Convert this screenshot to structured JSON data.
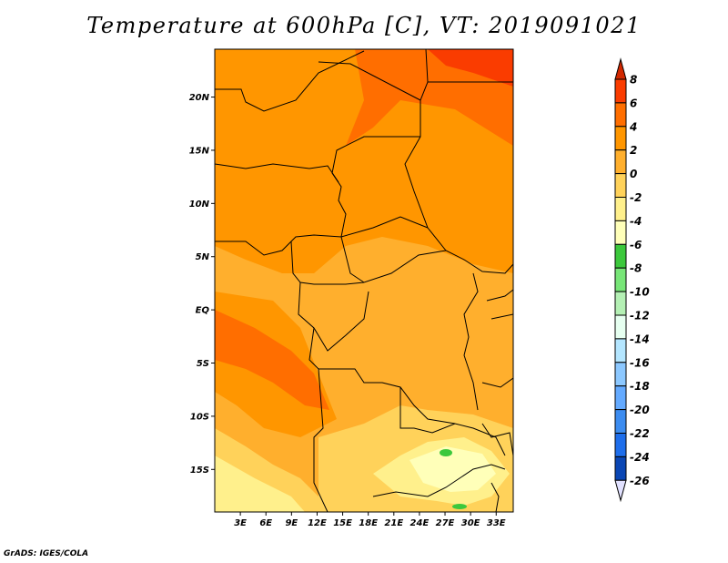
{
  "title": "Temperature at 600hPa [C], VT: 2019091021",
  "credit": "GrADS: IGES/COLA",
  "map": {
    "lon_range": [
      0,
      35
    ],
    "lat_range": [
      -19,
      24.5
    ],
    "lat_ticks": [
      {
        "lat": 20,
        "label": "20N"
      },
      {
        "lat": 15,
        "label": "15N"
      },
      {
        "lat": 10,
        "label": "10N"
      },
      {
        "lat": 5,
        "label": "5N"
      },
      {
        "lat": 0,
        "label": "EQ"
      },
      {
        "lat": -5,
        "label": "5S"
      },
      {
        "lat": -10,
        "label": "10S"
      },
      {
        "lat": -15,
        "label": "15S"
      }
    ],
    "lon_ticks": [
      {
        "lon": 3,
        "label": "3E"
      },
      {
        "lon": 6,
        "label": "6E"
      },
      {
        "lon": 9,
        "label": "9E"
      },
      {
        "lon": 12,
        "label": "12E"
      },
      {
        "lon": 15,
        "label": "15E"
      },
      {
        "lon": 18,
        "label": "18E"
      },
      {
        "lon": 21,
        "label": "21E"
      },
      {
        "lon": 24,
        "label": "24E"
      },
      {
        "lon": 27,
        "label": "27E"
      },
      {
        "lon": 30,
        "label": "30E"
      },
      {
        "lon": 33,
        "label": "33E"
      }
    ]
  },
  "colorbar": {
    "levels": [
      "8",
      "6",
      "4",
      "2",
      "0",
      "-2",
      "-4",
      "-6",
      "-8",
      "-10",
      "-12",
      "-14",
      "-16",
      "-18",
      "-20",
      "-22",
      "-24",
      "-26"
    ],
    "colors": [
      "#fa3c00",
      "#ff6e00",
      "#ff9600",
      "#ffaf2d",
      "#ffd25a",
      "#fff08c",
      "#ffffb9",
      "#3cc83c",
      "#78e678",
      "#b4f0b4",
      "#e6fff0",
      "#b4e6ff",
      "#8cc8ff",
      "#64aaff",
      "#3c8cf0",
      "#1e6eeb",
      "#0a46b4",
      "#0a1e78",
      "#0a0a50"
    ],
    "top_color": "#d22800",
    "bottom_color": "#e1e1ff"
  },
  "regions": [
    {
      "name": "base",
      "color": "#ffaf2d"
    },
    {
      "name": "north-warm",
      "color": "#ff9600"
    },
    {
      "name": "northeast-hot",
      "color": "#ff6e00"
    },
    {
      "name": "northeast-corner",
      "color": "#fa3c00"
    },
    {
      "name": "atlantic-warm-band",
      "color": "#ff9600"
    },
    {
      "name": "atlantic-hot-band",
      "color": "#ff6e00"
    },
    {
      "name": "southwest-cool",
      "color": "#ffd25a"
    },
    {
      "name": "southwest-coast",
      "color": "#fff08c"
    },
    {
      "name": "south-cool",
      "color": "#ffd25a"
    },
    {
      "name": "zambia-cool",
      "color": "#fff08c"
    },
    {
      "name": "zambia-cold",
      "color": "#ffffb9"
    },
    {
      "name": "green-spot-1",
      "color": "#3cc83c"
    },
    {
      "name": "green-spot-2",
      "color": "#3cc83c"
    }
  ]
}
